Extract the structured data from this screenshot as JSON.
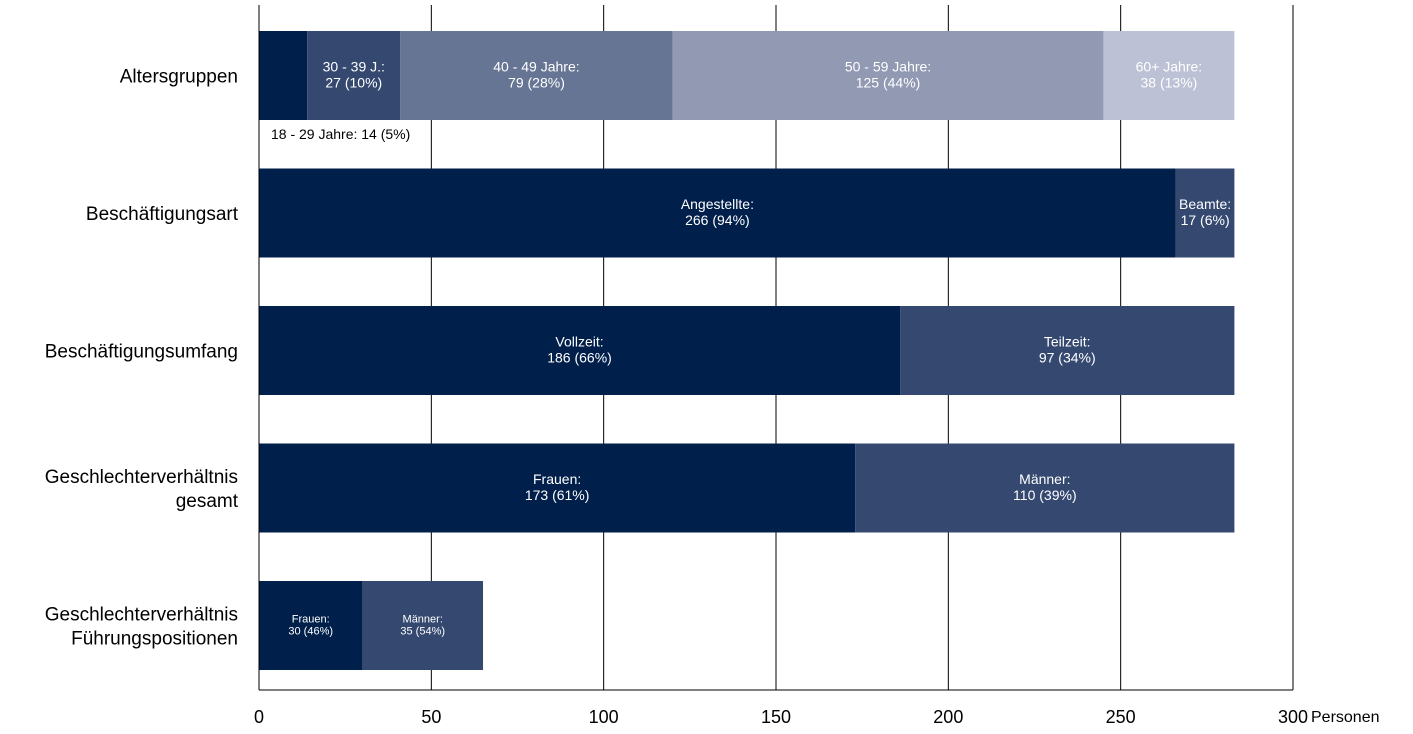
{
  "chart_data": {
    "type": "bar",
    "orientation": "horizontal",
    "stacked": true,
    "title": "",
    "xlabel": "Personen",
    "ylabel": "",
    "xlim": [
      0,
      300
    ],
    "xticks": [
      "0",
      "50",
      "100",
      "150",
      "200",
      "250",
      "300"
    ],
    "grid": true,
    "legend": "none",
    "categories": [
      {
        "label_lines": [
          "Altersgruppen"
        ],
        "segments": [
          {
            "value": 14,
            "color": "#001f4a",
            "label_lines": [
              "18 - 29 Jahre: 14 (5%)"
            ],
            "label_position": "below-left"
          },
          {
            "value": 27,
            "color": "#344870",
            "label_lines": [
              "30 - 39 J.:",
              "27 (10%)"
            ]
          },
          {
            "value": 79,
            "color": "#677594",
            "label_lines": [
              "40 - 49 Jahre:",
              "79 (28%)"
            ]
          },
          {
            "value": 125,
            "color": "#9199b3",
            "label_lines": [
              "50 - 59 Jahre:",
              "125 (44%)"
            ]
          },
          {
            "value": 38,
            "color": "#bdc1d5",
            "label_lines": [
              "60+ Jahre:",
              "38 (13%)"
            ]
          }
        ]
      },
      {
        "label_lines": [
          "Beschäftigungsart"
        ],
        "segments": [
          {
            "value": 266,
            "color": "#001f4a",
            "label_lines": [
              "Angestellte:",
              "266 (94%)"
            ]
          },
          {
            "value": 17,
            "color": "#344870",
            "label_lines": [
              "Beamte:",
              "17 (6%)"
            ]
          }
        ]
      },
      {
        "label_lines": [
          "Beschäftigungsumfang"
        ],
        "segments": [
          {
            "value": 186,
            "color": "#001f4a",
            "label_lines": [
              "Vollzeit:",
              "186 (66%)"
            ]
          },
          {
            "value": 97,
            "color": "#344870",
            "label_lines": [
              "Teilzeit:",
              "97 (34%)"
            ]
          }
        ]
      },
      {
        "label_lines": [
          "Geschlechterverhältnis",
          "gesamt"
        ],
        "segments": [
          {
            "value": 173,
            "color": "#001f4a",
            "label_lines": [
              "Frauen:",
              "173 (61%)"
            ]
          },
          {
            "value": 110,
            "color": "#344870",
            "label_lines": [
              "Männer:",
              "110 (39%)"
            ]
          }
        ]
      },
      {
        "label_lines": [
          "Geschlechterverhältnis",
          "Führungspositionen"
        ],
        "small_labels": true,
        "segments": [
          {
            "value": 30,
            "color": "#001f4a",
            "label_lines": [
              "Frauen:",
              "30 (46%)"
            ]
          },
          {
            "value": 35,
            "color": "#344870",
            "label_lines": [
              "Männer:",
              "35 (54%)"
            ]
          }
        ]
      }
    ]
  }
}
